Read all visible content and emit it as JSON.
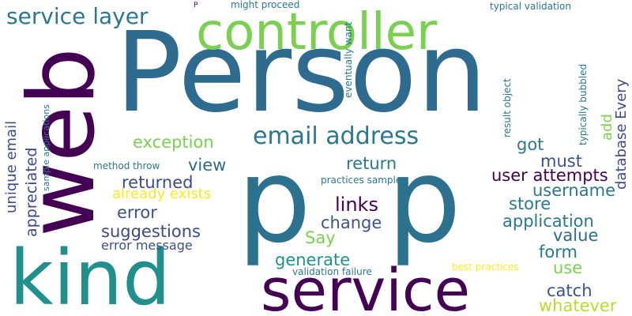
{
  "words": [
    {
      "text": "Person",
      "color": "#2f6b8e"
    },
    {
      "text": "p",
      "color": "#2c728e"
    },
    {
      "text": "p",
      "color": "#2c728e"
    },
    {
      "text": "web",
      "color": "#440154"
    },
    {
      "text": "kind",
      "color": "#21908d"
    },
    {
      "text": "service",
      "color": "#440154"
    },
    {
      "text": "controller",
      "color": "#7ad151"
    },
    {
      "text": "service layer",
      "color": "#2a788e"
    },
    {
      "text": "email address",
      "color": "#2a788e"
    },
    {
      "text": "exception",
      "color": "#7ad151"
    },
    {
      "text": "view",
      "color": "#31688e"
    },
    {
      "text": "returned",
      "color": "#3e4a89"
    },
    {
      "text": "error",
      "color": "#3b528b"
    },
    {
      "text": "suggestions",
      "color": "#3e4a89"
    },
    {
      "text": "error message",
      "color": "#3b528b"
    },
    {
      "text": "unique email",
      "color": "#3e4a89"
    },
    {
      "text": "appreciated",
      "color": "#3e4a89"
    },
    {
      "text": "return",
      "color": "#2a788e"
    },
    {
      "text": "links",
      "color": "#440154"
    },
    {
      "text": "change",
      "color": "#3b528b"
    },
    {
      "text": "Say",
      "color": "#7ad151"
    },
    {
      "text": "generate",
      "color": "#21908d"
    },
    {
      "text": "got",
      "color": "#2a788e"
    },
    {
      "text": "must",
      "color": "#3b528b"
    },
    {
      "text": "user attempts",
      "color": "#440154"
    },
    {
      "text": "username",
      "color": "#2a788e"
    },
    {
      "text": "store",
      "color": "#2a788e"
    },
    {
      "text": "application",
      "color": "#2a788e"
    },
    {
      "text": "value",
      "color": "#31688e"
    },
    {
      "text": "form",
      "color": "#2a788e"
    },
    {
      "text": "use",
      "color": "#7ad151"
    },
    {
      "text": "catch",
      "color": "#3b528b"
    },
    {
      "text": "whatever",
      "color": "#b5de2b"
    },
    {
      "text": "add",
      "color": "#7ad151"
    },
    {
      "text": "database Every",
      "color": "#3e4a89"
    },
    {
      "text": "already exists",
      "color": "#fde725"
    },
    {
      "text": "method throw",
      "color": "#2a788e"
    },
    {
      "text": "practices sample",
      "color": "#2a788e"
    },
    {
      "text": "validation failure",
      "color": "#2a788e"
    },
    {
      "text": "best practices",
      "color": "#fde725"
    },
    {
      "text": "might proceed",
      "color": "#2a788e"
    },
    {
      "text": "typical validation",
      "color": "#2a788e"
    },
    {
      "text": "eventually want",
      "color": "#2a788e"
    },
    {
      "text": "result object",
      "color": "#2a788e"
    },
    {
      "text": "typically bubbled",
      "color": "#2a788e"
    },
    {
      "text": "sample applications",
      "color": "#2a788e"
    },
    {
      "text": "P",
      "color": "#440154"
    }
  ]
}
